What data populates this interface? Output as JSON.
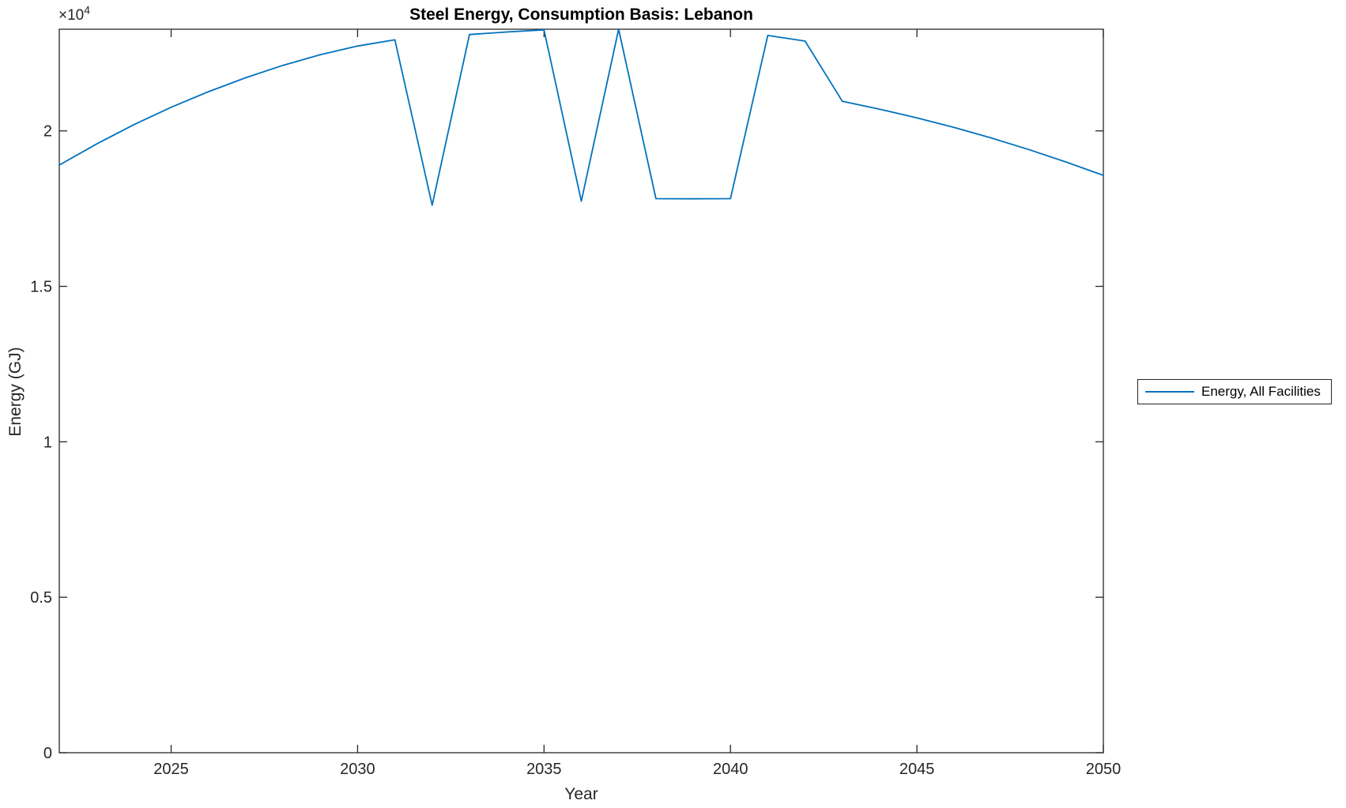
{
  "figure": {
    "background": "#ffffff",
    "axis_color": "#262626",
    "y_axis_multiplier": {
      "base": "×10",
      "exponent": "4"
    }
  },
  "chart_data": {
    "type": "line",
    "title": "Steel Energy, Consumption Basis: Lebanon",
    "xlabel": "Year",
    "ylabel": "Energy (GJ)",
    "xlim": [
      2022,
      2050
    ],
    "ylim": [
      0,
      23270
    ],
    "x_ticks": [
      2025,
      2030,
      2035,
      2040,
      2045,
      2050
    ],
    "x_tick_labels": [
      "2025",
      "2030",
      "2035",
      "2040",
      "2045",
      "2050"
    ],
    "y_ticks": [
      0,
      5000,
      10000,
      15000,
      20000
    ],
    "y_tick_labels": [
      "0",
      "0.5",
      "1",
      "1.5",
      "2"
    ],
    "y_multiplier_text": "×10^4",
    "grid": false,
    "box": true,
    "tick_direction": "in",
    "legend_position": "right-outside",
    "series": [
      {
        "name": "Energy, All Facilities",
        "color": "#0072BD",
        "x": [
          2022,
          2023,
          2024,
          2025,
          2026,
          2027,
          2028,
          2029,
          2030,
          2031,
          2032,
          2033,
          2034,
          2035,
          2036,
          2037,
          2038,
          2039,
          2040,
          2041,
          2042,
          2043,
          2044,
          2045,
          2046,
          2047,
          2048,
          2049,
          2050
        ],
        "y": [
          18900,
          19580,
          20200,
          20760,
          21260,
          21710,
          22110,
          22450,
          22730,
          22930,
          17610,
          23100,
          23180,
          23250,
          17740,
          23270,
          17820,
          17815,
          17820,
          23070,
          22890,
          20950,
          20700,
          20420,
          20110,
          19770,
          19400,
          19000,
          18570
        ]
      }
    ]
  },
  "legend": {
    "entries": [
      {
        "label": "Energy, All Facilities",
        "color": "#0072BD"
      }
    ]
  }
}
